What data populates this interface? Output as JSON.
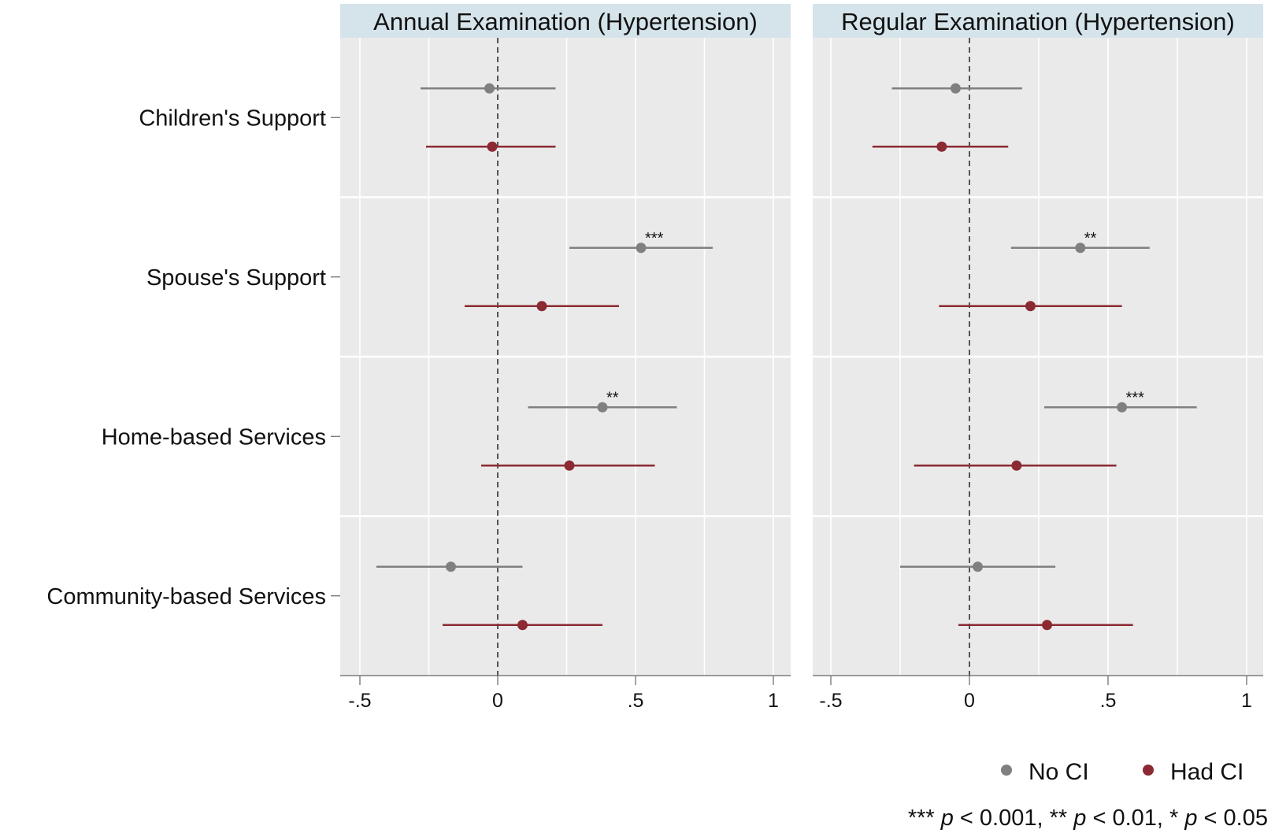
{
  "chart_data": {
    "type": "scatter",
    "subtype": "coefficient-plot",
    "categories": [
      "Children's Support",
      "Spouse's Support",
      "Home-based Services",
      "Community-based Services"
    ],
    "xlim": [
      -0.55,
      1.05
    ],
    "x_ticks": [
      -0.5,
      0,
      0.5,
      1
    ],
    "x_tick_labels": [
      "-.5",
      "0",
      ".5",
      "1"
    ],
    "reference_line": 0,
    "grid": true,
    "legend": {
      "position": "bottom-right",
      "entries": [
        {
          "label": "No CI",
          "color": "#808080"
        },
        {
          "label": "Had CI",
          "color": "#8b2a32"
        }
      ]
    },
    "footnote": {
      "p1_stars": "***",
      "p1_var": "p",
      "p1_rest": " < 0.001, ",
      "p2_stars": "**",
      "p2_var": "p",
      "p2_rest": " < 0.01, ",
      "p3_stars": "*",
      "p3_var": "p",
      "p3_rest": " < 0.05"
    },
    "panels": [
      {
        "title": "Annual Examination (Hypertension)",
        "series": [
          {
            "name": "No CI",
            "color": "#808080",
            "points": [
              {
                "category": "Children's Support",
                "est": -0.03,
                "lo": -0.28,
                "hi": 0.21,
                "sig": ""
              },
              {
                "category": "Spouse's Support",
                "est": 0.52,
                "lo": 0.26,
                "hi": 0.78,
                "sig": "***"
              },
              {
                "category": "Home-based Services",
                "est": 0.38,
                "lo": 0.11,
                "hi": 0.65,
                "sig": "**"
              },
              {
                "category": "Community-based Services",
                "est": -0.17,
                "lo": -0.44,
                "hi": 0.09,
                "sig": ""
              }
            ]
          },
          {
            "name": "Had CI",
            "color": "#8b2a32",
            "points": [
              {
                "category": "Children's Support",
                "est": -0.02,
                "lo": -0.26,
                "hi": 0.21,
                "sig": ""
              },
              {
                "category": "Spouse's Support",
                "est": 0.16,
                "lo": -0.12,
                "hi": 0.44,
                "sig": ""
              },
              {
                "category": "Home-based Services",
                "est": 0.26,
                "lo": -0.06,
                "hi": 0.57,
                "sig": ""
              },
              {
                "category": "Community-based Services",
                "est": 0.09,
                "lo": -0.2,
                "hi": 0.38,
                "sig": ""
              }
            ]
          }
        ]
      },
      {
        "title": "Regular Examination (Hypertension)",
        "series": [
          {
            "name": "No CI",
            "color": "#808080",
            "points": [
              {
                "category": "Children's Support",
                "est": -0.05,
                "lo": -0.28,
                "hi": 0.19,
                "sig": ""
              },
              {
                "category": "Spouse's Support",
                "est": 0.4,
                "lo": 0.15,
                "hi": 0.65,
                "sig": "**"
              },
              {
                "category": "Home-based Services",
                "est": 0.55,
                "lo": 0.27,
                "hi": 0.82,
                "sig": "***"
              },
              {
                "category": "Community-based Services",
                "est": 0.03,
                "lo": -0.25,
                "hi": 0.31,
                "sig": ""
              }
            ]
          },
          {
            "name": "Had CI",
            "color": "#8b2a32",
            "points": [
              {
                "category": "Children's Support",
                "est": -0.1,
                "lo": -0.35,
                "hi": 0.14,
                "sig": ""
              },
              {
                "category": "Spouse's Support",
                "est": 0.22,
                "lo": -0.11,
                "hi": 0.55,
                "sig": ""
              },
              {
                "category": "Home-based Services",
                "est": 0.17,
                "lo": -0.2,
                "hi": 0.53,
                "sig": ""
              },
              {
                "category": "Community-based Services",
                "est": 0.28,
                "lo": -0.04,
                "hi": 0.59,
                "sig": ""
              }
            ]
          }
        ]
      }
    ]
  }
}
